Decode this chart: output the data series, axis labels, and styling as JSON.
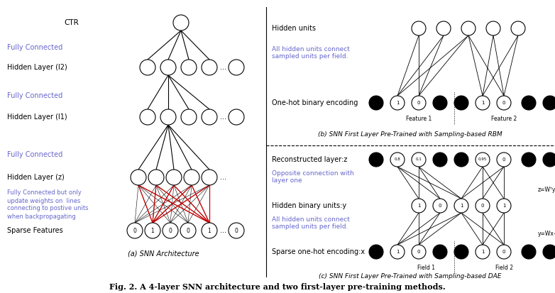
{
  "title": "Fig. 2. A 4-layer SNN architecture and two first-layer pre-training methods.",
  "background_color": "#ffffff",
  "purple_color": "#6666cc",
  "black_color": "#000000",
  "red_color": "#cc0000",
  "caption_a": "(a) SNN Architecture",
  "caption_b": "(b) SNN First Layer Pre-Trained with Sampling-based RBM",
  "caption_c": "(c) SNN First Layer Pre-Trained with Sampling-based DAE",
  "fig_caption": "Fig. 2. A 4-layer SNN architecture and two first-layer pre-training methods."
}
